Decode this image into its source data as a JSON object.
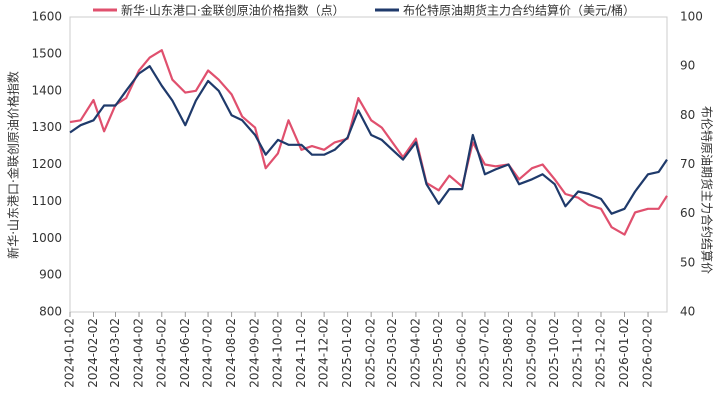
{
  "chart_data": {
    "type": "line",
    "x": [
      "2024-01-02",
      "2024-01-16",
      "2024-02-02",
      "2024-02-16",
      "2024-03-02",
      "2024-03-16",
      "2024-04-02",
      "2024-04-16",
      "2024-05-02",
      "2024-05-16",
      "2024-06-02",
      "2024-06-16",
      "2024-07-02",
      "2024-07-16",
      "2024-08-02",
      "2024-08-16",
      "2024-09-02",
      "2024-09-16",
      "2024-10-02",
      "2024-10-16",
      "2024-11-02",
      "2024-11-16",
      "2024-12-02",
      "2024-12-16",
      "2025-01-02",
      "2025-01-16",
      "2025-02-02",
      "2025-02-16",
      "2025-03-02",
      "2025-03-16",
      "2025-04-02",
      "2025-04-16",
      "2025-05-02",
      "2025-05-16",
      "2025-06-02",
      "2025-06-16",
      "2025-07-02",
      "2025-07-16",
      "2025-08-02",
      "2025-08-16",
      "2025-09-02",
      "2025-09-16",
      "2025-10-02",
      "2025-10-16",
      "2025-11-02",
      "2025-11-16",
      "2025-12-02",
      "2025-12-16",
      "2026-01-02",
      "2026-01-16",
      "2026-02-02",
      "2026-02-16",
      "2026-02-27"
    ],
    "series": [
      {
        "name": "新华·山东港口·金联创原油价格指数（点）",
        "color": "#e0506e",
        "values": [
          1315,
          1320,
          1375,
          1290,
          1362,
          1380,
          1455,
          1490,
          1510,
          1430,
          1395,
          1400,
          1455,
          1430,
          1390,
          1330,
          1300,
          1190,
          1230,
          1320,
          1240,
          1250,
          1240,
          1260,
          1270,
          1380,
          1320,
          1300,
          1260,
          1220,
          1270,
          1150,
          1130,
          1170,
          1140,
          1260,
          1200,
          1195,
          1200,
          1160,
          1190,
          1200,
          1160,
          1120,
          1110,
          1090,
          1080,
          1030,
          1010,
          1070,
          1080,
          1080,
          1115
        ]
      },
      {
        "name": "布伦特原油期货主力合约结算价（美元/桶）",
        "color": "#1f3a6b",
        "axis": "y2",
        "values": [
          76.5,
          78,
          79,
          82,
          82,
          85,
          88.5,
          90,
          86,
          83,
          78,
          83,
          87,
          85,
          80,
          79,
          76,
          72,
          75,
          74,
          74,
          72,
          72,
          73,
          75.5,
          81,
          76,
          75,
          73,
          71,
          74.5,
          66,
          62,
          65,
          65,
          76,
          68,
          69,
          70,
          66,
          67,
          68,
          66,
          61.5,
          64.5,
          64,
          63,
          60,
          61,
          64.5,
          68,
          68.5,
          71
        ]
      }
    ],
    "xlim": [
      "2024-01-02",
      "2026-02-27"
    ],
    "xticks": [
      "2024-01-02",
      "2024-02-02",
      "2024-03-02",
      "2024-04-02",
      "2024-05-02",
      "2024-06-02",
      "2024-07-02",
      "2024-08-02",
      "2024-09-02",
      "2024-10-02",
      "2024-11-02",
      "2024-12-02",
      "2025-01-02",
      "2025-02-02",
      "2025-03-02",
      "2025-04-02",
      "2025-05-02",
      "2025-06-02",
      "2025-07-02",
      "2025-08-02",
      "2025-09-02",
      "2025-10-02",
      "2025-11-02",
      "2025-12-02",
      "2026-01-02",
      "2026-02-02"
    ],
    "ylim": [
      800,
      1600
    ],
    "yticks": [
      800,
      900,
      1000,
      1100,
      1200,
      1300,
      1400,
      1500,
      1600
    ],
    "y2lim": [
      40,
      100
    ],
    "y2ticks": [
      40,
      50,
      60,
      70,
      80,
      90,
      100
    ],
    "ylabel": "新华·山东港口·金联创原油价格指数",
    "y2label": "布伦特原油期货主力合约结算价"
  }
}
